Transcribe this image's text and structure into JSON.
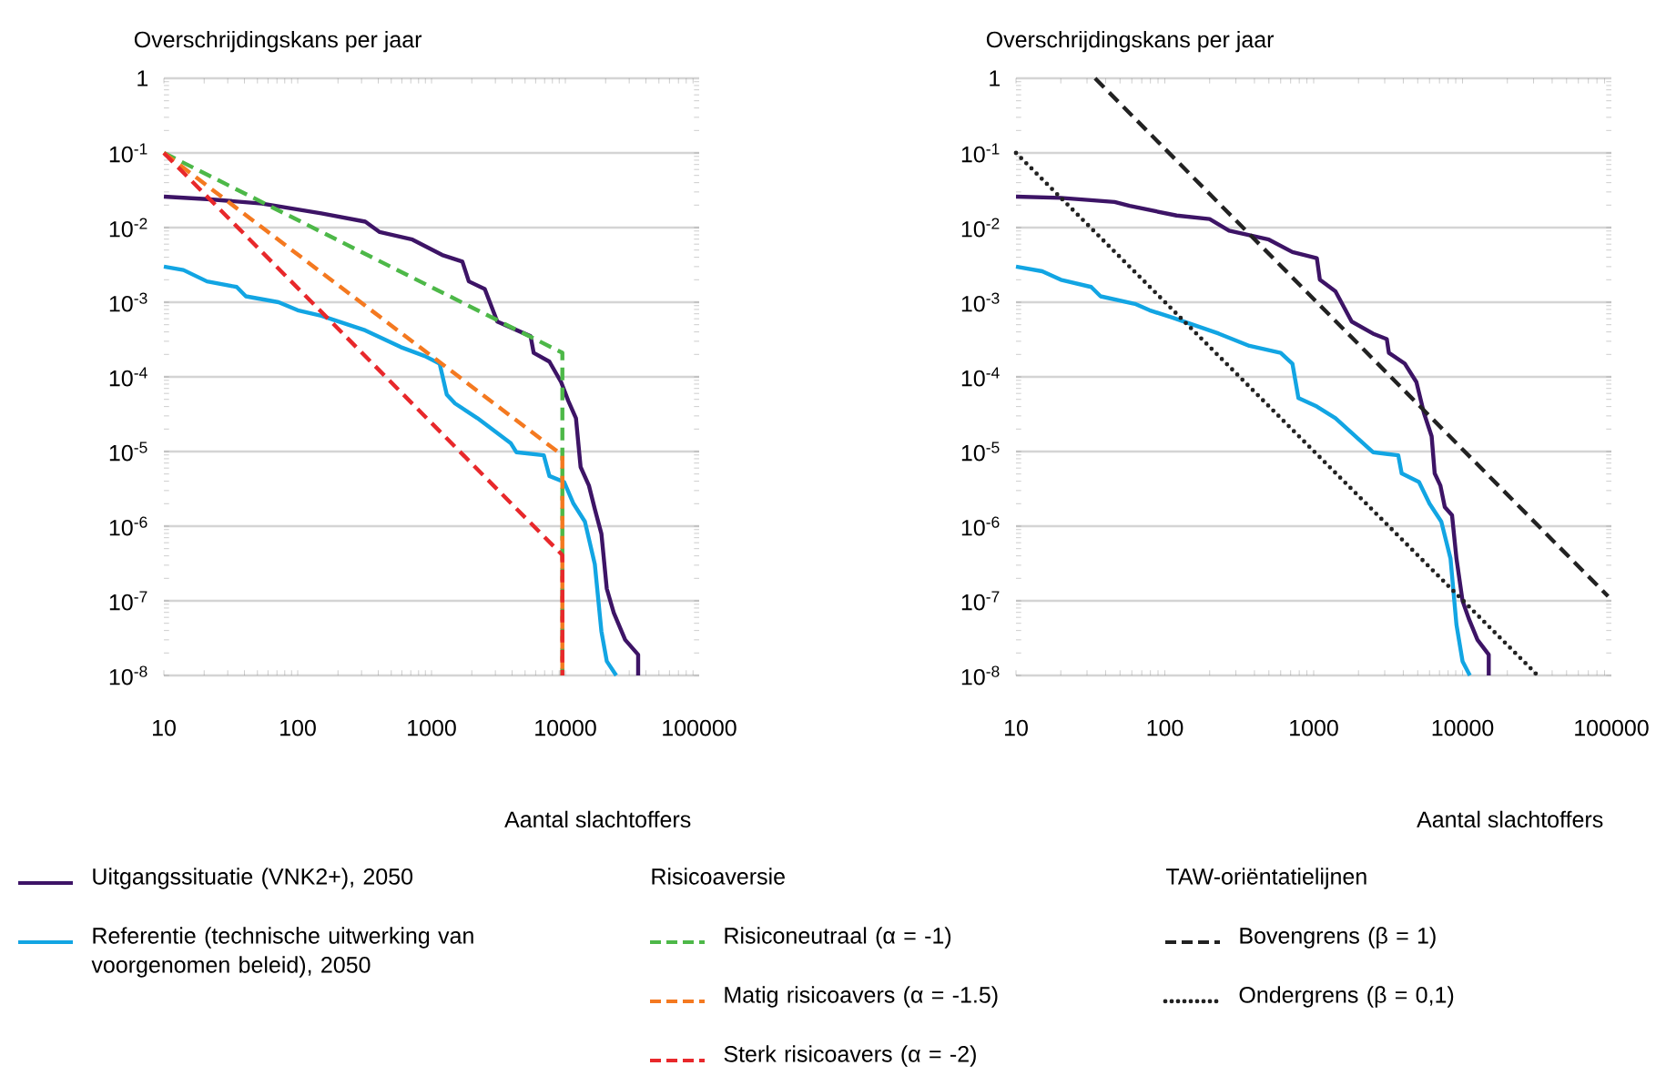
{
  "chart_data": [
    {
      "type": "line",
      "ylabel": "Overschrijdingskans per jaar",
      "xlabel": "Aantal slachtoffers",
      "legend_title": "Risicoaversie",
      "log": "xy",
      "grid": "y",
      "legend": "bottom",
      "xlim": [
        10,
        100000
      ],
      "ylim": [
        1e-08,
        1
      ],
      "xticks": [
        10,
        100,
        1000,
        10000,
        100000
      ],
      "yticks": [
        {
          "value": 1e-08,
          "label": "10$^{-8}$"
        },
        {
          "value": 1e-07,
          "label": "10$^{-7}$"
        },
        {
          "value": 1e-06,
          "label": "10$^{-6}$"
        },
        {
          "value": 1e-05,
          "label": "10$^{-5}$"
        },
        {
          "value": 0.0001,
          "label": "10$^{-4}$"
        },
        {
          "value": 0.001,
          "label": "10$^{-3}$"
        },
        {
          "value": 0.01,
          "label": "10$^{-2}$"
        },
        {
          "value": 0.1,
          "label": "10$^{-1}$"
        },
        1
      ],
      "series": [
        {
          "name": "Uitgangssituatie (VNK2+), 2050",
          "color": "#3d1466",
          "line_style": "solid",
          "x": [
            10,
            21,
            54,
            150,
            320,
            410,
            720,
            1200,
            1700,
            1900,
            2500,
            3100,
            5500,
            5800,
            7600,
            9300,
            10500,
            12000,
            13000,
            15000,
            16600,
            18600,
            20400,
            23000,
            28000,
            35000,
            35000
          ],
          "values": [
            0.026,
            0.024,
            0.021,
            0.0155,
            0.012,
            0.0087,
            0.0069,
            0.0043,
            0.0035,
            0.0019,
            0.0015,
            0.00055,
            0.00035,
            0.00021,
            0.00016,
            8.5e-05,
            4.8e-05,
            2.8e-05,
            6.2e-06,
            3.5e-06,
            1.7e-06,
            7.9e-07,
            1.45e-07,
            6.9e-08,
            3e-08,
            1.9e-08,
            1e-08
          ]
        },
        {
          "name": "Referentie (technische uitwerking van voorgenomen beleid), 2050",
          "color": "#12a5e3",
          "line_style": "solid",
          "x": [
            10,
            14,
            21,
            35,
            41,
            72,
            100,
            150,
            320,
            590,
            890,
            1150,
            1300,
            1500,
            2200,
            3900,
            4300,
            6900,
            7600,
            9800,
            11500,
            14000,
            16600,
            18600,
            20400,
            24000
          ],
          "values": [
            0.003,
            0.0027,
            0.0019,
            0.0016,
            0.0012,
            0.001,
            0.00078,
            0.00066,
            0.00042,
            0.00025,
            0.00019,
            0.00015,
            5.8e-05,
            4.4e-05,
            2.8e-05,
            1.3e-05,
            9.8e-06,
            8.9e-06,
            4.7e-06,
            3.9e-06,
            2e-06,
            1.15e-06,
            3.1e-07,
            3.9e-08,
            1.55e-08,
            1e-08
          ]
        },
        {
          "name": "Risiconeutraal (α = -1)",
          "color": "#4db848",
          "line_style": "dashed",
          "x": [
            10,
            9500,
            9500
          ],
          "values": [
            0.1,
            0.00021,
            1e-08
          ]
        },
        {
          "name": "Matig risicoavers (α = -1.5)",
          "color": "#f47920",
          "line_style": "dashed",
          "x": [
            10,
            9500,
            9500
          ],
          "values": [
            0.1,
            8.9e-06,
            1e-08
          ]
        },
        {
          "name": "Sterk risicoavers (α = -2)",
          "color": "#e8282b",
          "line_style": "dashed",
          "x": [
            10,
            9500,
            9500
          ],
          "values": [
            0.1,
            4.1e-07,
            1e-08
          ]
        }
      ]
    },
    {
      "type": "line",
      "ylabel": "Overschrijdingskans per jaar",
      "xlabel": "Aantal slachtoffers",
      "legend_title": "TAW-oriëntatielijnen",
      "log": "xy",
      "grid": "y",
      "legend": "bottom",
      "xlim": [
        10,
        100000
      ],
      "ylim": [
        1e-08,
        1
      ],
      "xticks": [
        10,
        100,
        1000,
        10000,
        100000
      ],
      "yticks": [
        {
          "value": 1e-08,
          "label": "10$^{-8}$"
        },
        {
          "value": 1e-07,
          "label": "10$^{-7}$"
        },
        {
          "value": 1e-06,
          "label": "10$^{-6}$"
        },
        {
          "value": 1e-05,
          "label": "10$^{-5}$"
        },
        {
          "value": 0.0001,
          "label": "10$^{-4}$"
        },
        {
          "value": 0.001,
          "label": "10$^{-3}$"
        },
        {
          "value": 0.01,
          "label": "10$^{-2}$"
        },
        {
          "value": 0.1,
          "label": "10$^{-1}$"
        },
        1
      ],
      "series": [
        {
          "color": "#3d1466",
          "line_style": "solid",
          "x": [
            10,
            20,
            46,
            58,
            120,
            200,
            270,
            500,
            720,
            1050,
            1100,
            1400,
            1800,
            2500,
            3100,
            3200,
            4100,
            4900,
            5500,
            6200,
            6500,
            7100,
            7600,
            8500,
            9100,
            10000,
            11000,
            12600,
            15000,
            15000
          ],
          "values": [
            0.026,
            0.025,
            0.022,
            0.0195,
            0.0145,
            0.013,
            0.0091,
            0.0069,
            0.0047,
            0.0039,
            0.002,
            0.0014,
            0.00055,
            0.00038,
            0.00032,
            0.00021,
            0.00015,
            8.5e-05,
            3.3e-05,
            1.6e-05,
            5.1e-06,
            3.5e-06,
            1.8e-06,
            1.4e-06,
            3.7e-07,
            1e-07,
            5.8e-08,
            3e-08,
            1.9e-08,
            1e-08
          ]
        },
        {
          "color": "#12a5e3",
          "line_style": "solid",
          "x": [
            10,
            15,
            20,
            32,
            37,
            63,
            79,
            110,
            230,
            370,
            600,
            720,
            790,
            1050,
            1400,
            2500,
            3700,
            3900,
            5100,
            6000,
            7200,
            8300,
            9100,
            10000,
            11200
          ],
          "values": [
            0.003,
            0.0026,
            0.002,
            0.0016,
            0.0012,
            0.00095,
            0.00078,
            0.00063,
            0.00038,
            0.00026,
            0.00021,
            0.00015,
            5.2e-05,
            4e-05,
            2.8e-05,
            9.8e-06,
            8.9e-06,
            5.1e-06,
            3.9e-06,
            2e-06,
            1.15e-06,
            3.7e-07,
            4.8e-08,
            1.55e-08,
            1e-08
          ]
        },
        {
          "name": "Bovengrens (β = 1)",
          "color": "#222222",
          "line_style": "dashed",
          "x": [
            34,
            95000
          ],
          "values": [
            1,
            1.15e-07
          ]
        },
        {
          "name": "Ondergrens (β = 0,1)",
          "color": "#222222",
          "line_style": "dotted",
          "x": [
            10,
            32000
          ],
          "values": [
            0.1,
            1e-08
          ]
        }
      ]
    }
  ]
}
